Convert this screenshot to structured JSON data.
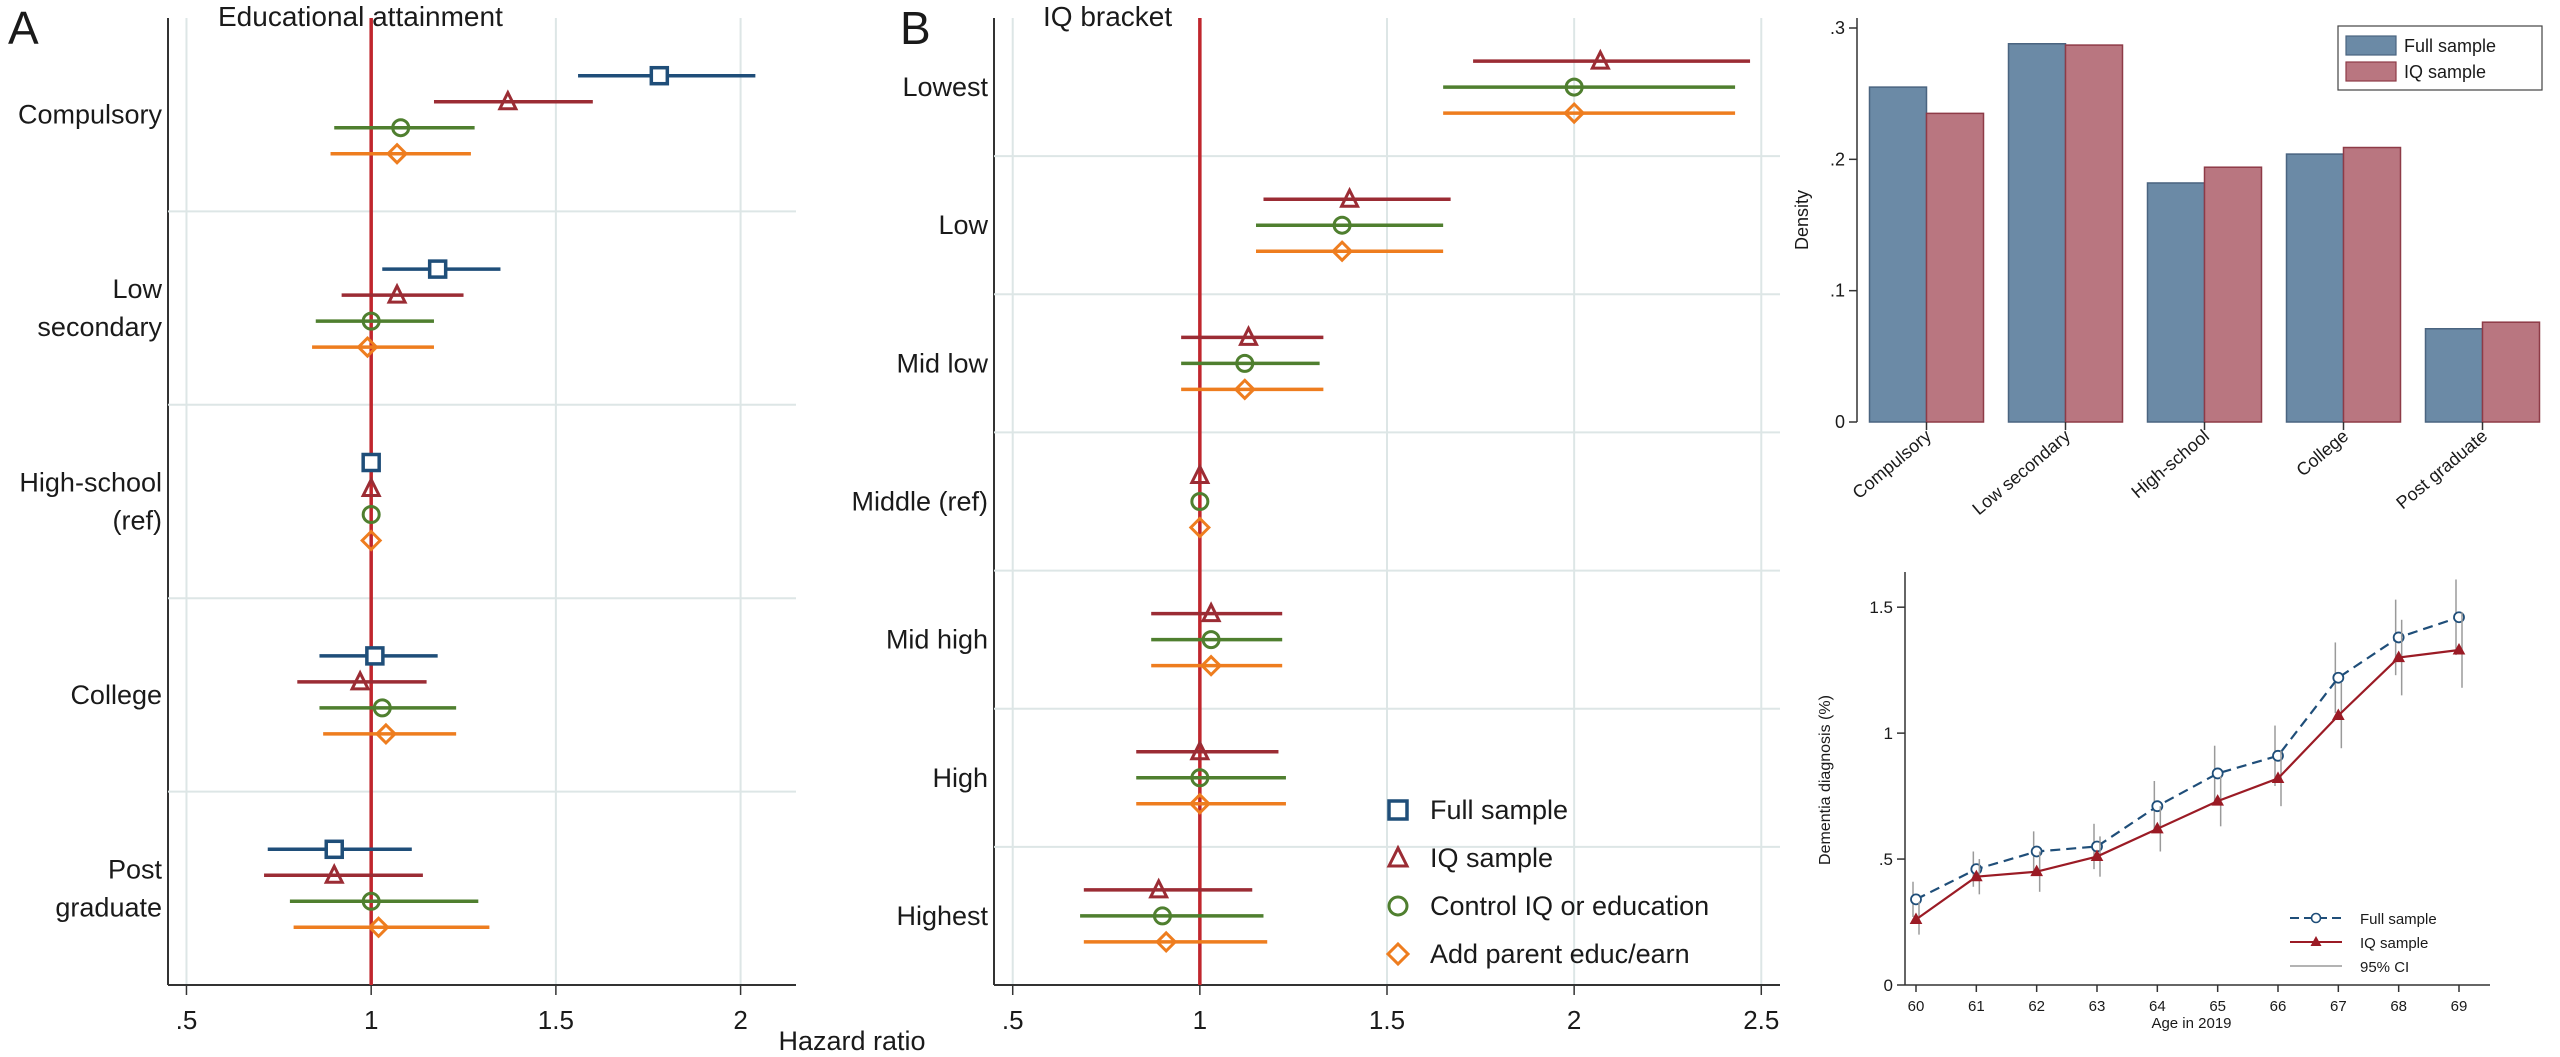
{
  "figure": {
    "panel_labels": [
      "A",
      "B"
    ],
    "shared_xlabel": "Hazard ratio"
  },
  "colors": {
    "full": "#1f4e79",
    "iq": "#9b2c34",
    "control": "#4f7f2f",
    "parent": "#ee7d1f",
    "refline": "#c0262d",
    "bar_full": "#6b8aa6",
    "bar_iq": "#b97680",
    "line_full": "#1f4e79",
    "line_iq": "#9b1b25",
    "ci": "#9a9a9a",
    "grid": "#dde6e6"
  },
  "chart_data": [
    {
      "type": "forest",
      "panel": "A",
      "title": "Educational attainment",
      "xlim": [
        0.45,
        2.15
      ],
      "xticks": [
        ".5",
        "1",
        "1.5",
        "2"
      ],
      "xtick_values": [
        0.5,
        1,
        1.5,
        2
      ],
      "reference_line": 1,
      "groups": [
        {
          "label_lines": [
            "Compulsory"
          ],
          "estimates": [
            {
              "series": "full",
              "point": 1.78,
              "lo": 1.56,
              "hi": 2.04
            },
            {
              "series": "iq",
              "point": 1.37,
              "lo": 1.17,
              "hi": 1.6
            },
            {
              "series": "control",
              "point": 1.08,
              "lo": 0.9,
              "hi": 1.28
            },
            {
              "series": "parent",
              "point": 1.07,
              "lo": 0.89,
              "hi": 1.27
            }
          ]
        },
        {
          "label_lines": [
            "Low",
            "secondary"
          ],
          "estimates": [
            {
              "series": "full",
              "point": 1.18,
              "lo": 1.03,
              "hi": 1.35
            },
            {
              "series": "iq",
              "point": 1.07,
              "lo": 0.92,
              "hi": 1.25
            },
            {
              "series": "control",
              "point": 1.0,
              "lo": 0.85,
              "hi": 1.17
            },
            {
              "series": "parent",
              "point": 0.99,
              "lo": 0.84,
              "hi": 1.17
            }
          ]
        },
        {
          "label_lines": [
            "High-school",
            "(ref)"
          ],
          "estimates": [
            {
              "series": "full",
              "point": 1.0,
              "lo": 1.0,
              "hi": 1.0
            },
            {
              "series": "iq",
              "point": 1.0,
              "lo": 1.0,
              "hi": 1.0
            },
            {
              "series": "control",
              "point": 1.0,
              "lo": 1.0,
              "hi": 1.0
            },
            {
              "series": "parent",
              "point": 1.0,
              "lo": 1.0,
              "hi": 1.0
            }
          ]
        },
        {
          "label_lines": [
            "College"
          ],
          "estimates": [
            {
              "series": "full",
              "point": 1.01,
              "lo": 0.86,
              "hi": 1.18
            },
            {
              "series": "iq",
              "point": 0.97,
              "lo": 0.8,
              "hi": 1.15
            },
            {
              "series": "control",
              "point": 1.03,
              "lo": 0.86,
              "hi": 1.23
            },
            {
              "series": "parent",
              "point": 1.04,
              "lo": 0.87,
              "hi": 1.23
            }
          ]
        },
        {
          "label_lines": [
            "Post",
            "graduate"
          ],
          "estimates": [
            {
              "series": "full",
              "point": 0.9,
              "lo": 0.72,
              "hi": 1.11
            },
            {
              "series": "iq",
              "point": 0.9,
              "lo": 0.71,
              "hi": 1.14
            },
            {
              "series": "control",
              "point": 1.0,
              "lo": 0.78,
              "hi": 1.29
            },
            {
              "series": "parent",
              "point": 1.02,
              "lo": 0.79,
              "hi": 1.32
            }
          ]
        }
      ]
    },
    {
      "type": "forest",
      "panel": "B",
      "title": "IQ bracket",
      "xlim": [
        0.45,
        2.55
      ],
      "xticks": [
        ".5",
        "1",
        "1.5",
        "2",
        "2.5"
      ],
      "xtick_values": [
        0.5,
        1,
        1.5,
        2,
        2.5
      ],
      "reference_line": 1,
      "groups": [
        {
          "label_lines": [
            "Lowest"
          ],
          "estimates": [
            {
              "series": "iq",
              "point": 2.07,
              "lo": 1.73,
              "hi": 2.47
            },
            {
              "series": "control",
              "point": 2.0,
              "lo": 1.65,
              "hi": 2.43
            },
            {
              "series": "parent",
              "point": 2.0,
              "lo": 1.65,
              "hi": 2.43
            }
          ]
        },
        {
          "label_lines": [
            "Low"
          ],
          "estimates": [
            {
              "series": "iq",
              "point": 1.4,
              "lo": 1.17,
              "hi": 1.67
            },
            {
              "series": "control",
              "point": 1.38,
              "lo": 1.15,
              "hi": 1.65
            },
            {
              "series": "parent",
              "point": 1.38,
              "lo": 1.15,
              "hi": 1.65
            }
          ]
        },
        {
          "label_lines": [
            "Mid low"
          ],
          "estimates": [
            {
              "series": "iq",
              "point": 1.13,
              "lo": 0.95,
              "hi": 1.33
            },
            {
              "series": "control",
              "point": 1.12,
              "lo": 0.95,
              "hi": 1.32
            },
            {
              "series": "parent",
              "point": 1.12,
              "lo": 0.95,
              "hi": 1.33
            }
          ]
        },
        {
          "label_lines": [
            "Middle (ref)"
          ],
          "estimates": [
            {
              "series": "iq",
              "point": 1.0,
              "lo": 1.0,
              "hi": 1.0
            },
            {
              "series": "control",
              "point": 1.0,
              "lo": 1.0,
              "hi": 1.0
            },
            {
              "series": "parent",
              "point": 1.0,
              "lo": 1.0,
              "hi": 1.0
            }
          ]
        },
        {
          "label_lines": [
            "Mid high"
          ],
          "estimates": [
            {
              "series": "iq",
              "point": 1.03,
              "lo": 0.87,
              "hi": 1.22
            },
            {
              "series": "control",
              "point": 1.03,
              "lo": 0.87,
              "hi": 1.22
            },
            {
              "series": "parent",
              "point": 1.03,
              "lo": 0.87,
              "hi": 1.22
            }
          ]
        },
        {
          "label_lines": [
            "High"
          ],
          "estimates": [
            {
              "series": "iq",
              "point": 1.0,
              "lo": 0.83,
              "hi": 1.21
            },
            {
              "series": "control",
              "point": 1.0,
              "lo": 0.83,
              "hi": 1.23
            },
            {
              "series": "parent",
              "point": 1.0,
              "lo": 0.83,
              "hi": 1.23
            }
          ]
        },
        {
          "label_lines": [
            "Highest"
          ],
          "estimates": [
            {
              "series": "iq",
              "point": 0.89,
              "lo": 0.69,
              "hi": 1.14
            },
            {
              "series": "control",
              "point": 0.9,
              "lo": 0.68,
              "hi": 1.17
            },
            {
              "series": "parent",
              "point": 0.91,
              "lo": 0.69,
              "hi": 1.18
            }
          ]
        }
      ],
      "legend": [
        {
          "series": "full",
          "label": "Full sample",
          "marker": "square"
        },
        {
          "series": "iq",
          "label": "IQ sample",
          "marker": "triangle"
        },
        {
          "series": "control",
          "label": "Control IQ or education",
          "marker": "circle"
        },
        {
          "series": "parent",
          "label": "Add parent educ/earn",
          "marker": "diamond"
        }
      ]
    },
    {
      "type": "bar",
      "categories": [
        "Compulsory",
        "Low secondary",
        "High-school",
        "College",
        "Post graduate"
      ],
      "series": [
        {
          "name": "Full sample",
          "values": [
            0.255,
            0.288,
            0.182,
            0.204,
            0.071
          ]
        },
        {
          "name": "IQ sample",
          "values": [
            0.235,
            0.287,
            0.194,
            0.209,
            0.076
          ]
        }
      ],
      "ylabel": "Density",
      "ylim": [
        0,
        0.3
      ],
      "yticks": [
        "0",
        ".1",
        ".2",
        ".3"
      ],
      "ytick_values": [
        0,
        0.1,
        0.2,
        0.3
      ],
      "legend_position": "top-right"
    },
    {
      "type": "line",
      "x": [
        60,
        61,
        62,
        63,
        64,
        65,
        66,
        67,
        68,
        69
      ],
      "series": [
        {
          "name": "Full sample",
          "values": [
            0.34,
            0.46,
            0.53,
            0.55,
            0.71,
            0.84,
            0.91,
            1.22,
            1.38,
            1.46
          ],
          "ci_lo": [
            0.27,
            0.39,
            0.45,
            0.46,
            0.61,
            0.73,
            0.79,
            1.08,
            1.23,
            1.31
          ],
          "ci_hi": [
            0.41,
            0.53,
            0.61,
            0.64,
            0.81,
            0.95,
            1.03,
            1.36,
            1.53,
            1.61
          ]
        },
        {
          "name": "IQ sample",
          "values": [
            0.26,
            0.43,
            0.45,
            0.51,
            0.62,
            0.73,
            0.82,
            1.07,
            1.3,
            1.33
          ],
          "ci_lo": [
            0.2,
            0.36,
            0.37,
            0.43,
            0.53,
            0.63,
            0.71,
            0.94,
            1.15,
            1.18
          ],
          "ci_hi": [
            0.33,
            0.5,
            0.53,
            0.59,
            0.71,
            0.83,
            0.93,
            1.2,
            1.45,
            1.48
          ]
        }
      ],
      "xlabel": "Age in 2019",
      "ylabel": "Dementia diagnosis (%)",
      "ylim": [
        0,
        1.6
      ],
      "yticks": [
        "0",
        ".5",
        "1",
        "1.5"
      ],
      "ytick_values": [
        0,
        0.5,
        1,
        1.5
      ],
      "legend": [
        "Full sample",
        "IQ sample",
        "95% CI"
      ],
      "legend_position": "bottom-right"
    }
  ]
}
